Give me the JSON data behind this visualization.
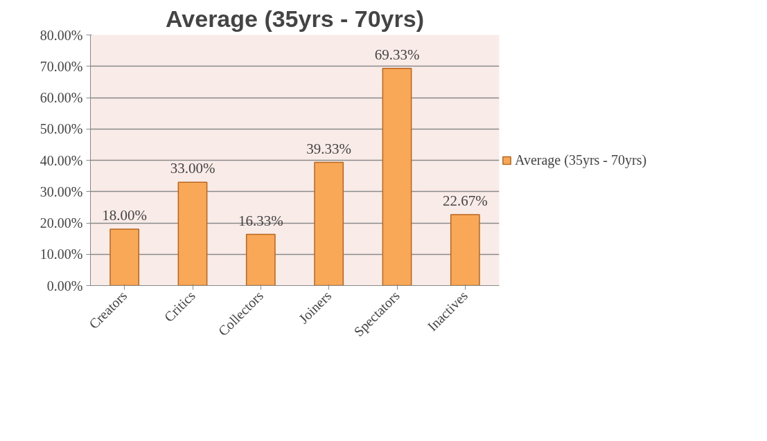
{
  "chart_data": {
    "type": "bar",
    "title": "Average (35yrs - 70yrs)",
    "categories": [
      "Creators",
      "Critics",
      "Collectors",
      "Joiners",
      "Spectators",
      "Inactives"
    ],
    "series": [
      {
        "name": "Average (35yrs - 70yrs)",
        "color": "#f8a856",
        "values": [
          18.0,
          33.0,
          16.33,
          39.33,
          69.33,
          22.67
        ],
        "value_labels": [
          "18.00%",
          "33.00%",
          "16.33%",
          "39.33%",
          "69.33%",
          "22.67%"
        ]
      }
    ],
    "ylim": [
      0,
      80
    ],
    "yticks": [
      {
        "value": 0,
        "label": "0.00%"
      },
      {
        "value": 10,
        "label": "10.00%"
      },
      {
        "value": 20,
        "label": "20.00%"
      },
      {
        "value": 30,
        "label": "30.00%"
      },
      {
        "value": 40,
        "label": "40.00%"
      },
      {
        "value": 50,
        "label": "50.00%"
      },
      {
        "value": 60,
        "label": "60.00%"
      },
      {
        "value": 70,
        "label": "70.00%"
      },
      {
        "value": 80,
        "label": "80.00%"
      }
    ],
    "grid": "y",
    "legend": "right"
  }
}
